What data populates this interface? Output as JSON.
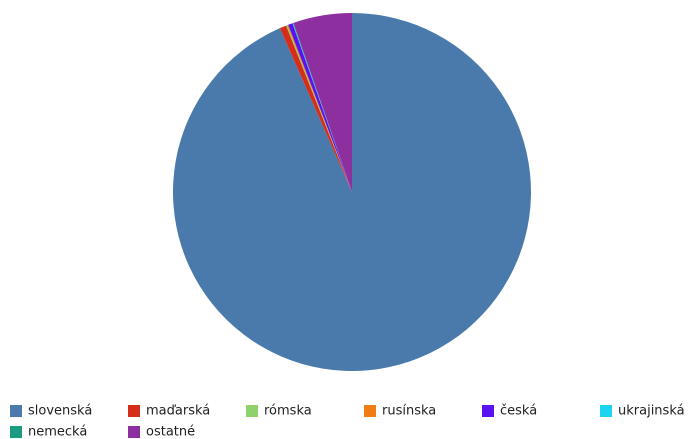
{
  "chart_data": {
    "type": "pie",
    "categories": [
      "slovenská",
      "maďarská",
      "rómska",
      "rusínska",
      "česká",
      "ukrajinská",
      "nemecká",
      "ostatné"
    ],
    "values": [
      93.4,
      0.6,
      0.1,
      0.1,
      0.4,
      0.05,
      0.05,
      5.3
    ],
    "colors": [
      "#4a7aab",
      "#d62c1a",
      "#8fd16a",
      "#f07c12",
      "#5a12f0",
      "#1ad4f0",
      "#1e9c80",
      "#8e2fa0"
    ],
    "legend": "bottom"
  }
}
